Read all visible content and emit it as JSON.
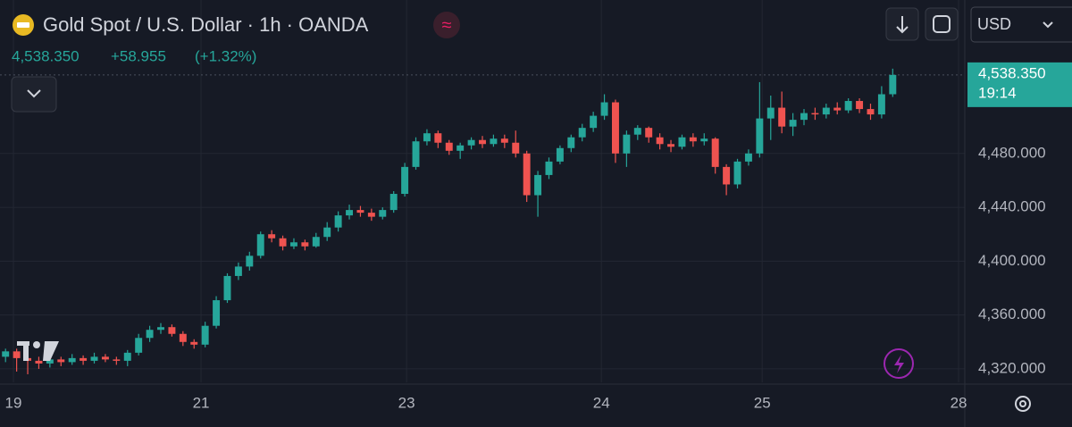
{
  "header": {
    "title": "Gold Spot / U.S. Dollar · 1h · OANDA",
    "last_price": "4,538.350",
    "change": "+58.955",
    "change_pct": "(+1.32%)",
    "currency": "USD",
    "countdown": "19:14"
  },
  "chart_data": {
    "type": "candlestick",
    "up_color": "#26a69a",
    "down_color": "#ef5350",
    "grid": true,
    "open": [
      4329,
      4333,
      4328,
      4326,
      4324,
      4327,
      4325,
      4328,
      4326,
      4329,
      4327,
      4326,
      4332,
      4343,
      4349,
      4351,
      4346,
      4340,
      4338,
      4352,
      4371,
      4389,
      4396,
      4404,
      4420,
      4417,
      4411,
      4414,
      4411,
      4418,
      4425,
      4434,
      4438,
      4436,
      4433,
      4438,
      4450,
      4470,
      4489,
      4495,
      4488,
      4482,
      4486,
      4490,
      4487,
      4491,
      4488,
      4480,
      4449,
      4464,
      4474,
      4484,
      4492,
      4499,
      4508,
      4518,
      4480,
      4494,
      4499,
      4492,
      4487,
      4485,
      4492,
      4489,
      4491,
      4470,
      4457,
      4474,
      4480,
      4506,
      4514,
      4500,
      4505,
      4510,
      4509,
      4514,
      4512,
      4519,
      4513,
      4509,
      4524
    ],
    "high": [
      4335,
      4335,
      4331,
      4329,
      4330,
      4329,
      4331,
      4330,
      4332,
      4331,
      4329,
      4334,
      4346,
      4352,
      4354,
      4353,
      4348,
      4342,
      4355,
      4374,
      4391,
      4399,
      4407,
      4422,
      4423,
      4419,
      4417,
      4416,
      4421,
      4429,
      4437,
      4442,
      4441,
      4439,
      4440,
      4452,
      4473,
      4492,
      4498,
      4497,
      4490,
      4488,
      4492,
      4493,
      4494,
      4494,
      4497,
      4482,
      4467,
      4477,
      4486,
      4494,
      4502,
      4511,
      4524,
      4520,
      4497,
      4501,
      4500,
      4495,
      4490,
      4494,
      4495,
      4495,
      4492,
      4472,
      4476,
      4483,
      4533,
      4523,
      4526,
      4510,
      4513,
      4514,
      4517,
      4518,
      4521,
      4521,
      4517,
      4530,
      4543
    ],
    "low": [
      4325,
      4318,
      4316,
      4320,
      4321,
      4322,
      4323,
      4323,
      4324,
      4325,
      4323,
      4322,
      4330,
      4340,
      4346,
      4344,
      4337,
      4335,
      4336,
      4350,
      4369,
      4386,
      4393,
      4402,
      4414,
      4408,
      4409,
      4408,
      4410,
      4415,
      4422,
      4431,
      4433,
      4430,
      4431,
      4436,
      4448,
      4468,
      4486,
      4484,
      4479,
      4476,
      4483,
      4484,
      4485,
      4484,
      4477,
      4444,
      4433,
      4461,
      4472,
      4481,
      4489,
      4496,
      4505,
      4473,
      4470,
      4490,
      4488,
      4483,
      4481,
      4483,
      4485,
      4486,
      4465,
      4449,
      4454,
      4471,
      4477,
      4490,
      4495,
      4493,
      4501,
      4505,
      4506,
      4509,
      4510,
      4510,
      4505,
      4506,
      4522
    ],
    "close": [
      4333,
      4328,
      4326,
      4324,
      4327,
      4325,
      4328,
      4326,
      4329,
      4327,
      4326,
      4332,
      4343,
      4349,
      4351,
      4346,
      4340,
      4338,
      4352,
      4371,
      4389,
      4396,
      4404,
      4420,
      4417,
      4411,
      4414,
      4411,
      4418,
      4425,
      4434,
      4438,
      4436,
      4433,
      4438,
      4450,
      4470,
      4489,
      4495,
      4488,
      4482,
      4486,
      4490,
      4487,
      4491,
      4488,
      4480,
      4449,
      4464,
      4474,
      4484,
      4492,
      4499,
      4508,
      4518,
      4480,
      4494,
      4499,
      4492,
      4487,
      4485,
      4492,
      4489,
      4491,
      4470,
      4457,
      4474,
      4480,
      4506,
      4514,
      4500,
      4505,
      4510,
      4509,
      4514,
      4512,
      4519,
      4513,
      4509,
      4524,
      4538.35
    ],
    "xlim": [
      -0.5,
      86.5
    ],
    "xticks": [
      {
        "value": 0.71,
        "label": "19"
      },
      {
        "value": 17.63,
        "label": "21"
      },
      {
        "value": 36.16,
        "label": "23"
      },
      {
        "value": 53.73,
        "label": "24"
      },
      {
        "value": 68.23,
        "label": "25"
      },
      {
        "value": 85.94,
        "label": "28"
      }
    ],
    "ylim": [
      4310,
      4594
    ],
    "yticks": [
      {
        "value": 4320,
        "label": "4,320.000"
      },
      {
        "value": 4360,
        "label": "4,360.000"
      },
      {
        "value": 4400,
        "label": "4,400.000"
      },
      {
        "value": 4440,
        "label": "4,440.000"
      },
      {
        "value": 4480,
        "label": "4,480.000"
      }
    ]
  }
}
